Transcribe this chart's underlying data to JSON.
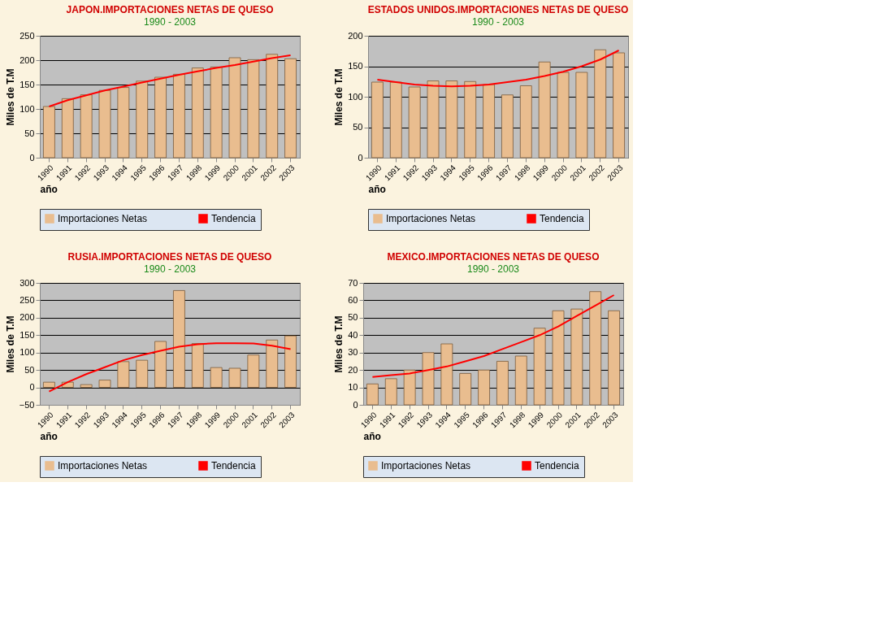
{
  "chart_data": [
    {
      "type": "bar",
      "title": "JAPON.IMPORTACIONES NETAS DE QUESO",
      "subtitle": "1990 - 2003",
      "xlabel": "año",
      "ylabel": "Miles de T.M",
      "categories": [
        "1990",
        "1991",
        "1992",
        "1993",
        "1994",
        "1995",
        "1996",
        "1997",
        "1998",
        "1999",
        "2000",
        "2001",
        "2002",
        "2003"
      ],
      "ylim": [
        0,
        250
      ],
      "yticks": [
        0,
        50,
        100,
        150,
        200,
        250
      ],
      "grid": "y",
      "legend": "bottom",
      "series": [
        {
          "name": "Importaciones Netas",
          "color": "#e9bd8f",
          "values": [
            105,
            121,
            129,
            138,
            144,
            157,
            165,
            171,
            184,
            186,
            205,
            201,
            212,
            203
          ]
        },
        {
          "name": "Tendencia",
          "type": "line",
          "color": "#ff0000",
          "values": [
            105,
            118,
            128,
            138,
            146,
            154,
            162,
            170,
            177,
            184,
            190,
            197,
            204,
            210
          ]
        }
      ]
    },
    {
      "type": "bar",
      "title": "ESTADOS UNIDOS.IMPORTACIONES NETAS DE QUESO",
      "subtitle": "1990 - 2003",
      "xlabel": "año",
      "ylabel": "Miles de T.M",
      "categories": [
        "1990",
        "1991",
        "1992",
        "1993",
        "1994",
        "1995",
        "1996",
        "1997",
        "1998",
        "1999",
        "2000",
        "2001",
        "2002",
        "2003"
      ],
      "ylim": [
        0,
        200
      ],
      "yticks": [
        0,
        50,
        100,
        150,
        200
      ],
      "grid": "y",
      "legend": "bottom",
      "series": [
        {
          "name": "Importaciones Netas",
          "color": "#e9bd8f",
          "values": [
            124,
            124,
            116,
            126,
            126,
            125,
            120,
            103,
            118,
            157,
            140,
            140,
            177,
            172
          ]
        },
        {
          "name": "Tendencia",
          "type": "line",
          "color": "#ff0000",
          "values": [
            128,
            124,
            120,
            118,
            117,
            118,
            120,
            124,
            128,
            134,
            141,
            150,
            161,
            176
          ]
        }
      ]
    },
    {
      "type": "bar",
      "title": "RUSIA.IMPORTACIONES NETAS DE QUESO",
      "subtitle": "1990 - 2003",
      "xlabel": "año",
      "ylabel": "Miles de T.M",
      "categories": [
        "1990",
        "1991",
        "1992",
        "1993",
        "1994",
        "1995",
        "1996",
        "1997",
        "1998",
        "1999",
        "2000",
        "2001",
        "2002",
        "2003"
      ],
      "ylim": [
        -50,
        300
      ],
      "yticks": [
        -50,
        0,
        50,
        100,
        150,
        200,
        250,
        300
      ],
      "grid": "y",
      "legend": "bottom",
      "series": [
        {
          "name": "Importaciones Netas",
          "color": "#e9bd8f",
          "values": [
            15,
            15,
            8,
            21,
            74,
            78,
            132,
            278,
            126,
            57,
            55,
            93,
            136,
            148
          ]
        },
        {
          "name": "Tendencia",
          "type": "line",
          "color": "#ff0000",
          "values": [
            -12,
            15,
            38,
            58,
            78,
            93,
            105,
            117,
            124,
            127,
            127,
            126,
            120,
            110
          ]
        }
      ]
    },
    {
      "type": "bar",
      "title": "MEXICO.IMPORTACIONES NETAS DE QUESO",
      "subtitle": "1990 - 2003",
      "xlabel": "año",
      "ylabel": "Miles de T.M",
      "categories": [
        "1990",
        "1991",
        "1992",
        "1993",
        "1994",
        "1995",
        "1996",
        "1997",
        "1998",
        "1999",
        "2000",
        "2001",
        "2002",
        "2003"
      ],
      "ylim": [
        0,
        70
      ],
      "yticks": [
        0,
        10,
        20,
        30,
        40,
        50,
        60,
        70
      ],
      "grid": "y",
      "legend": "bottom",
      "series": [
        {
          "name": "Importaciones Netas",
          "color": "#e9bd8f",
          "values": [
            12,
            15,
            20,
            30,
            35,
            18,
            20,
            25,
            28,
            44,
            54,
            55,
            65,
            54
          ]
        },
        {
          "name": "Tendencia",
          "type": "line",
          "color": "#ff0000",
          "values": [
            16,
            17,
            18,
            20,
            22,
            25,
            28,
            32,
            36,
            40,
            45,
            51,
            57,
            63
          ]
        }
      ]
    }
  ]
}
